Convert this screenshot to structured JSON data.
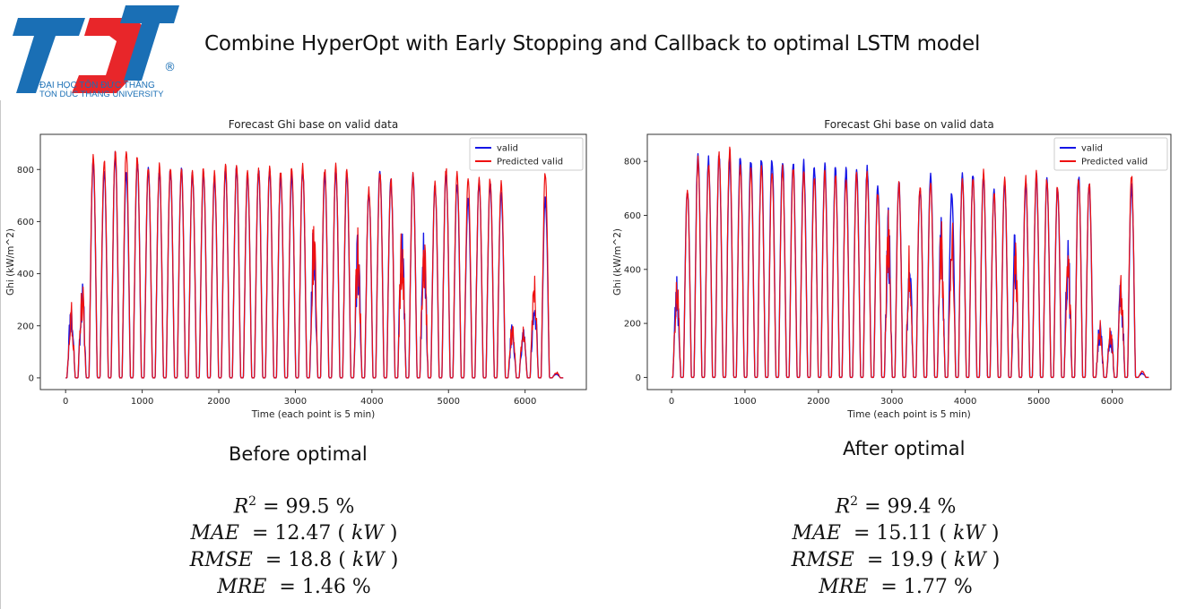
{
  "slide": {
    "title": "Combine HyperOpt with Early Stopping and Callback to optimal LSTM model"
  },
  "logo": {
    "line1": "ĐẠI HỌC TÔN ĐỨC THẮNG",
    "line2": "TON DUC THANG UNIVERSITY",
    "mark": "®"
  },
  "colors": {
    "valid": "#1515e6",
    "predicted": "#ee1111",
    "logo_red": "#e8262a",
    "logo_blue": "#1a6fb5"
  },
  "chart_data": [
    {
      "type": "line",
      "title": "Forecast Ghi base on valid data",
      "xlabel": "Time (each point is 5 min)",
      "ylabel": "Ghi (kW/m^2)",
      "xlim": [
        -330,
        6800
      ],
      "ylim": [
        -45,
        935
      ],
      "xticks": [
        0,
        1000,
        2000,
        3000,
        4000,
        5000,
        6000
      ],
      "yticks": [
        0,
        200,
        400,
        600,
        800
      ],
      "legend": {
        "position": "top-right",
        "entries": [
          "valid",
          "Predicted valid"
        ]
      },
      "series": [
        {
          "name": "valid",
          "color": "#1515e6",
          "x_end": 6500,
          "days": 45,
          "period": 144,
          "peaks": [
            300,
            380,
            850,
            815,
            870,
            810,
            850,
            820,
            805,
            815,
            815,
            800,
            805,
            780,
            810,
            815,
            800,
            810,
            815,
            790,
            800,
            810,
            600,
            800,
            810,
            790,
            560,
            730,
            810,
            770,
            600,
            800,
            570,
            750,
            810,
            760,
            700,
            770,
            760,
            730,
            220,
            200,
            390,
            700,
            20
          ]
        },
        {
          "name": "Predicted valid",
          "color": "#ee1111",
          "x_end": 6500,
          "days": 45,
          "period": 144,
          "peaks": [
            300,
            390,
            865,
            850,
            885,
            890,
            870,
            830,
            830,
            830,
            820,
            810,
            820,
            800,
            830,
            830,
            810,
            820,
            830,
            810,
            820,
            830,
            620,
            820,
            830,
            810,
            580,
            740,
            800,
            780,
            620,
            790,
            580,
            760,
            820,
            810,
            780,
            790,
            780,
            760,
            230,
            210,
            400,
            800,
            25
          ]
        }
      ]
    },
    {
      "type": "line",
      "title": "Forecast Ghi base on valid data",
      "xlabel": "Time (each point is 5 min)",
      "ylabel": "Ghi (kW/m^2)",
      "xlim": [
        -330,
        6800
      ],
      "ylim": [
        -45,
        900
      ],
      "xticks": [
        0,
        1000,
        2000,
        3000,
        4000,
        5000,
        6000
      ],
      "yticks": [
        0,
        200,
        400,
        600,
        800
      ],
      "legend": {
        "position": "top-right",
        "entries": [
          "valid",
          "Predicted valid"
        ]
      },
      "series": [
        {
          "name": "valid",
          "color": "#1515e6",
          "x_end": 6500,
          "days": 45,
          "period": 144,
          "peaks": [
            390,
            710,
            845,
            820,
            835,
            825,
            830,
            825,
            830,
            825,
            820,
            815,
            810,
            800,
            805,
            790,
            785,
            795,
            790,
            720,
            650,
            740,
            500,
            720,
            760,
            600,
            700,
            760,
            760,
            760,
            700,
            740,
            600,
            740,
            760,
            740,
            720,
            540,
            760,
            730,
            220,
            200,
            400,
            720,
            20
          ]
        },
        {
          "name": "Predicted valid",
          "color": "#ee1111",
          "x_end": 6500,
          "days": 45,
          "period": 144,
          "peaks": [
            400,
            700,
            830,
            810,
            840,
            860,
            800,
            790,
            790,
            780,
            790,
            785,
            770,
            760,
            780,
            765,
            760,
            770,
            765,
            700,
            640,
            730,
            500,
            720,
            740,
            590,
            690,
            750,
            760,
            780,
            700,
            750,
            600,
            760,
            770,
            750,
            730,
            560,
            750,
            740,
            230,
            210,
            410,
            760,
            25
          ]
        }
      ]
    }
  ],
  "results": [
    {
      "caption": "Before optimal",
      "r2_label": "R",
      "r2_exp": "2",
      "r2_value": "= 99.5 %",
      "mae_label": "MAE",
      "mae_value": "= 12.47 ( ",
      "mae_unit": "kW",
      "mae_close": " )",
      "rmse_label": "RMSE",
      "rmse_value": "= 18.8 ( ",
      "rmse_unit": "kW",
      "rmse_close": " )",
      "mre_label": "MRE",
      "mre_value": "= 1.46 %"
    },
    {
      "caption": "After optimal",
      "r2_label": "R",
      "r2_exp": "2",
      "r2_value": "= 99.4 %",
      "mae_label": "MAE",
      "mae_value": "= 15.11 ( ",
      "mae_unit": "kW",
      "mae_close": " )",
      "rmse_label": "RMSE",
      "rmse_value": "= 19.9 ( ",
      "rmse_unit": "kW",
      "rmse_close": " )",
      "mre_label": "MRE",
      "mre_value": "= 1.77 %"
    }
  ]
}
